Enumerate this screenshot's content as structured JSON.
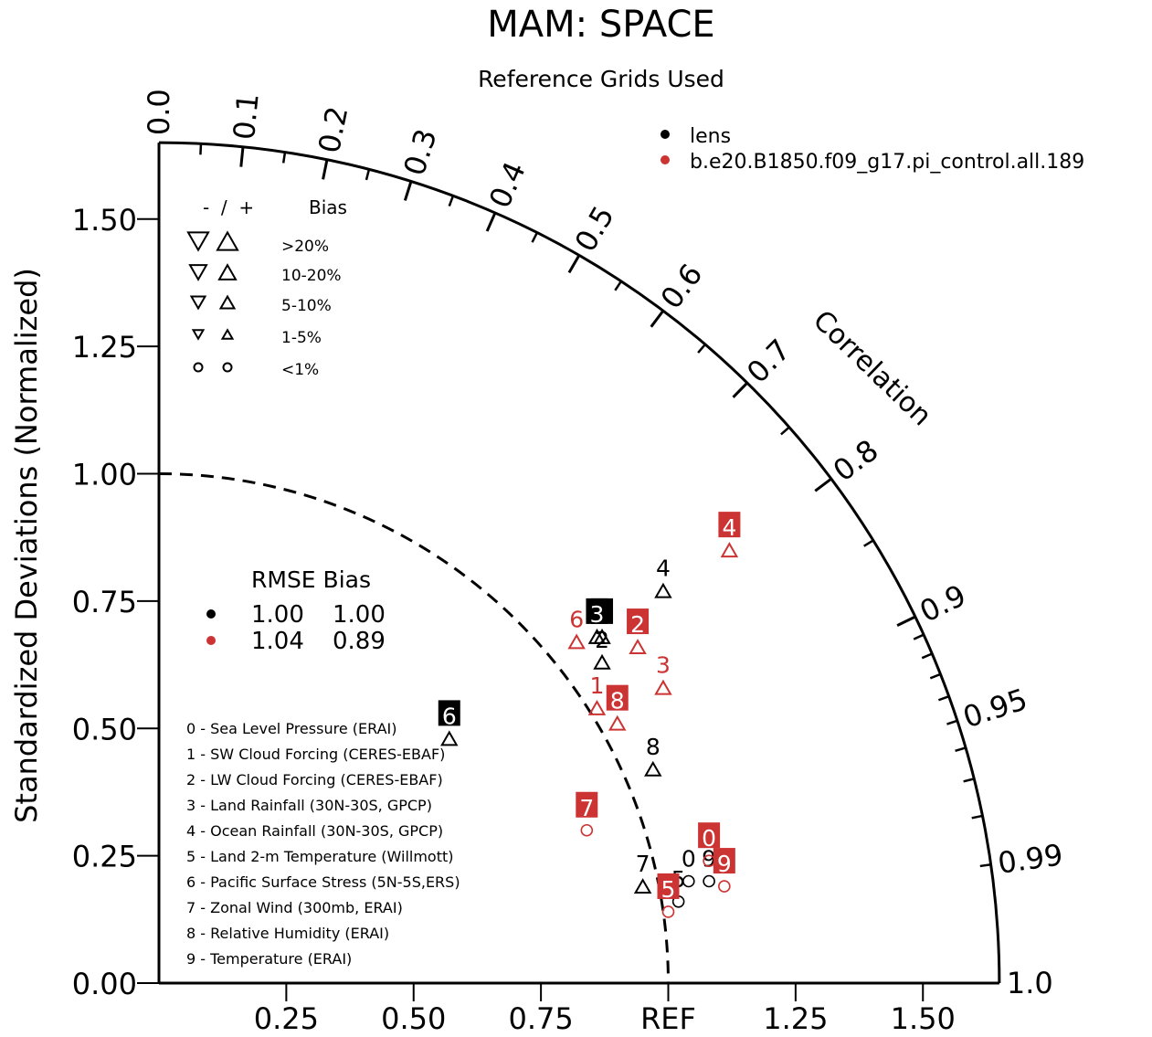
{
  "title": "MAM: SPACE",
  "subtitle": "Reference Grids Used",
  "ylabel": "Standardized Deviations (Normalized)",
  "arc_label": "Correlation",
  "colors": {
    "lens": "#000000",
    "model": "#cc3333"
  },
  "legend": [
    {
      "key": "lens",
      "label": "lens",
      "color": "#000000"
    },
    {
      "key": "model",
      "label": "b.e20.B1850.f09_g17.pi_control.all.189",
      "color": "#cc3333"
    }
  ],
  "bias_legend": {
    "header_sign": "-  /  +",
    "header_bias": "Bias",
    "rows": [
      {
        "label": ">20%",
        "size": 22,
        "shape": "triangle"
      },
      {
        "label": "10-20%",
        "size": 18,
        "shape": "triangle"
      },
      {
        "label": "5-10%",
        "size": 15,
        "shape": "triangle"
      },
      {
        "label": "1-5%",
        "size": 11,
        "shape": "triangle"
      },
      {
        "label": "<1%",
        "size": 11,
        "shape": "circle"
      }
    ]
  },
  "rmse_table": {
    "header": "RMSE Bias",
    "rows": [
      {
        "color": "#000000",
        "rmse": "1.00",
        "bias": "1.00"
      },
      {
        "color": "#cc3333",
        "rmse": "1.04",
        "bias": "0.89"
      }
    ]
  },
  "variables": [
    "0 - Sea Level Pressure (ERAI)",
    "1 - SW Cloud Forcing (CERES-EBAF)",
    "2 - LW Cloud Forcing (CERES-EBAF)",
    "3 - Land Rainfall (30N-30S, GPCP)",
    "4 - Ocean Rainfall (30N-30S, GPCP)",
    "5 - Land 2-m Temperature (Willmott)",
    "6 - Pacific Surface Stress (5N-5S,ERS)",
    "7 - Zonal Wind (300mb, ERAI)",
    "8 - Relative Humidity (ERAI)",
    "9 - Temperature (ERAI)"
  ],
  "chart_data": {
    "type": "scatter",
    "title": "MAM: SPACE",
    "subtitle": "Reference Grids Used",
    "ylabel": "Standardized Deviations (Normalized)",
    "arc_label": "Correlation",
    "sd_max": 1.65,
    "ref_sd": 1.0,
    "y_ticks": [
      "0.00",
      "0.25",
      "0.50",
      "0.75",
      "1.00",
      "1.25",
      "1.50"
    ],
    "x_ticks": [
      "0.25",
      "0.50",
      "0.75",
      "REF",
      "1.25",
      "1.50"
    ],
    "corr_labels": [
      "0.0",
      "0.1",
      "0.2",
      "0.3",
      "0.4",
      "0.5",
      "0.6",
      "0.7",
      "0.8",
      "0.9",
      "0.95",
      "0.99",
      "1.0"
    ],
    "series": [
      {
        "name": "lens",
        "color": "#000000",
        "points": [
          {
            "id": "0",
            "x": 1.04,
            "y": 0.2,
            "marker": "circle",
            "label": "0",
            "box": false
          },
          {
            "id": "1",
            "x": 0.87,
            "y": 0.68,
            "marker": "triangle",
            "label": "1",
            "box": true
          },
          {
            "id": "2",
            "x": 0.87,
            "y": 0.63,
            "marker": "triangle",
            "label": "2",
            "box": false
          },
          {
            "id": "3",
            "x": 0.86,
            "y": 0.68,
            "marker": "triangle",
            "label": "3",
            "box": true
          },
          {
            "id": "4",
            "x": 0.99,
            "y": 0.77,
            "marker": "triangle",
            "label": "4",
            "box": false
          },
          {
            "id": "5",
            "x": 1.02,
            "y": 0.16,
            "marker": "circle",
            "label": "5",
            "box": false
          },
          {
            "id": "6",
            "x": 0.57,
            "y": 0.48,
            "marker": "triangle",
            "label": "6",
            "box": true
          },
          {
            "id": "7",
            "x": 0.95,
            "y": 0.19,
            "marker": "triangle",
            "label": "7",
            "box": false
          },
          {
            "id": "8",
            "x": 0.97,
            "y": 0.42,
            "marker": "triangle",
            "label": "8",
            "box": false
          },
          {
            "id": "9",
            "x": 1.08,
            "y": 0.2,
            "marker": "circle",
            "label": "9",
            "box": false
          }
        ]
      },
      {
        "name": "b.e20.B1850.f09_g17.pi_control.all.189",
        "color": "#cc3333",
        "points": [
          {
            "id": "0",
            "x": 1.08,
            "y": 0.24,
            "marker": "circle",
            "label": "0",
            "box": true
          },
          {
            "id": "1",
            "x": 0.86,
            "y": 0.54,
            "marker": "triangle",
            "label": "1",
            "box": false
          },
          {
            "id": "2",
            "x": 0.94,
            "y": 0.66,
            "marker": "triangle",
            "label": "2",
            "box": true
          },
          {
            "id": "3",
            "x": 0.99,
            "y": 0.58,
            "marker": "triangle",
            "label": "3",
            "box": false
          },
          {
            "id": "4",
            "x": 1.12,
            "y": 0.85,
            "marker": "triangle",
            "label": "4",
            "box": true
          },
          {
            "id": "5",
            "x": 1.0,
            "y": 0.14,
            "marker": "circle",
            "label": "5",
            "box": true
          },
          {
            "id": "6",
            "x": 0.82,
            "y": 0.67,
            "marker": "triangle",
            "label": "6",
            "box": false
          },
          {
            "id": "7",
            "x": 0.84,
            "y": 0.3,
            "marker": "circle",
            "label": "7",
            "box": true
          },
          {
            "id": "8",
            "x": 0.9,
            "y": 0.51,
            "marker": "triangle",
            "label": "8",
            "box": true
          },
          {
            "id": "9",
            "x": 1.11,
            "y": 0.19,
            "marker": "circle",
            "label": "9",
            "box": true
          }
        ]
      }
    ]
  }
}
